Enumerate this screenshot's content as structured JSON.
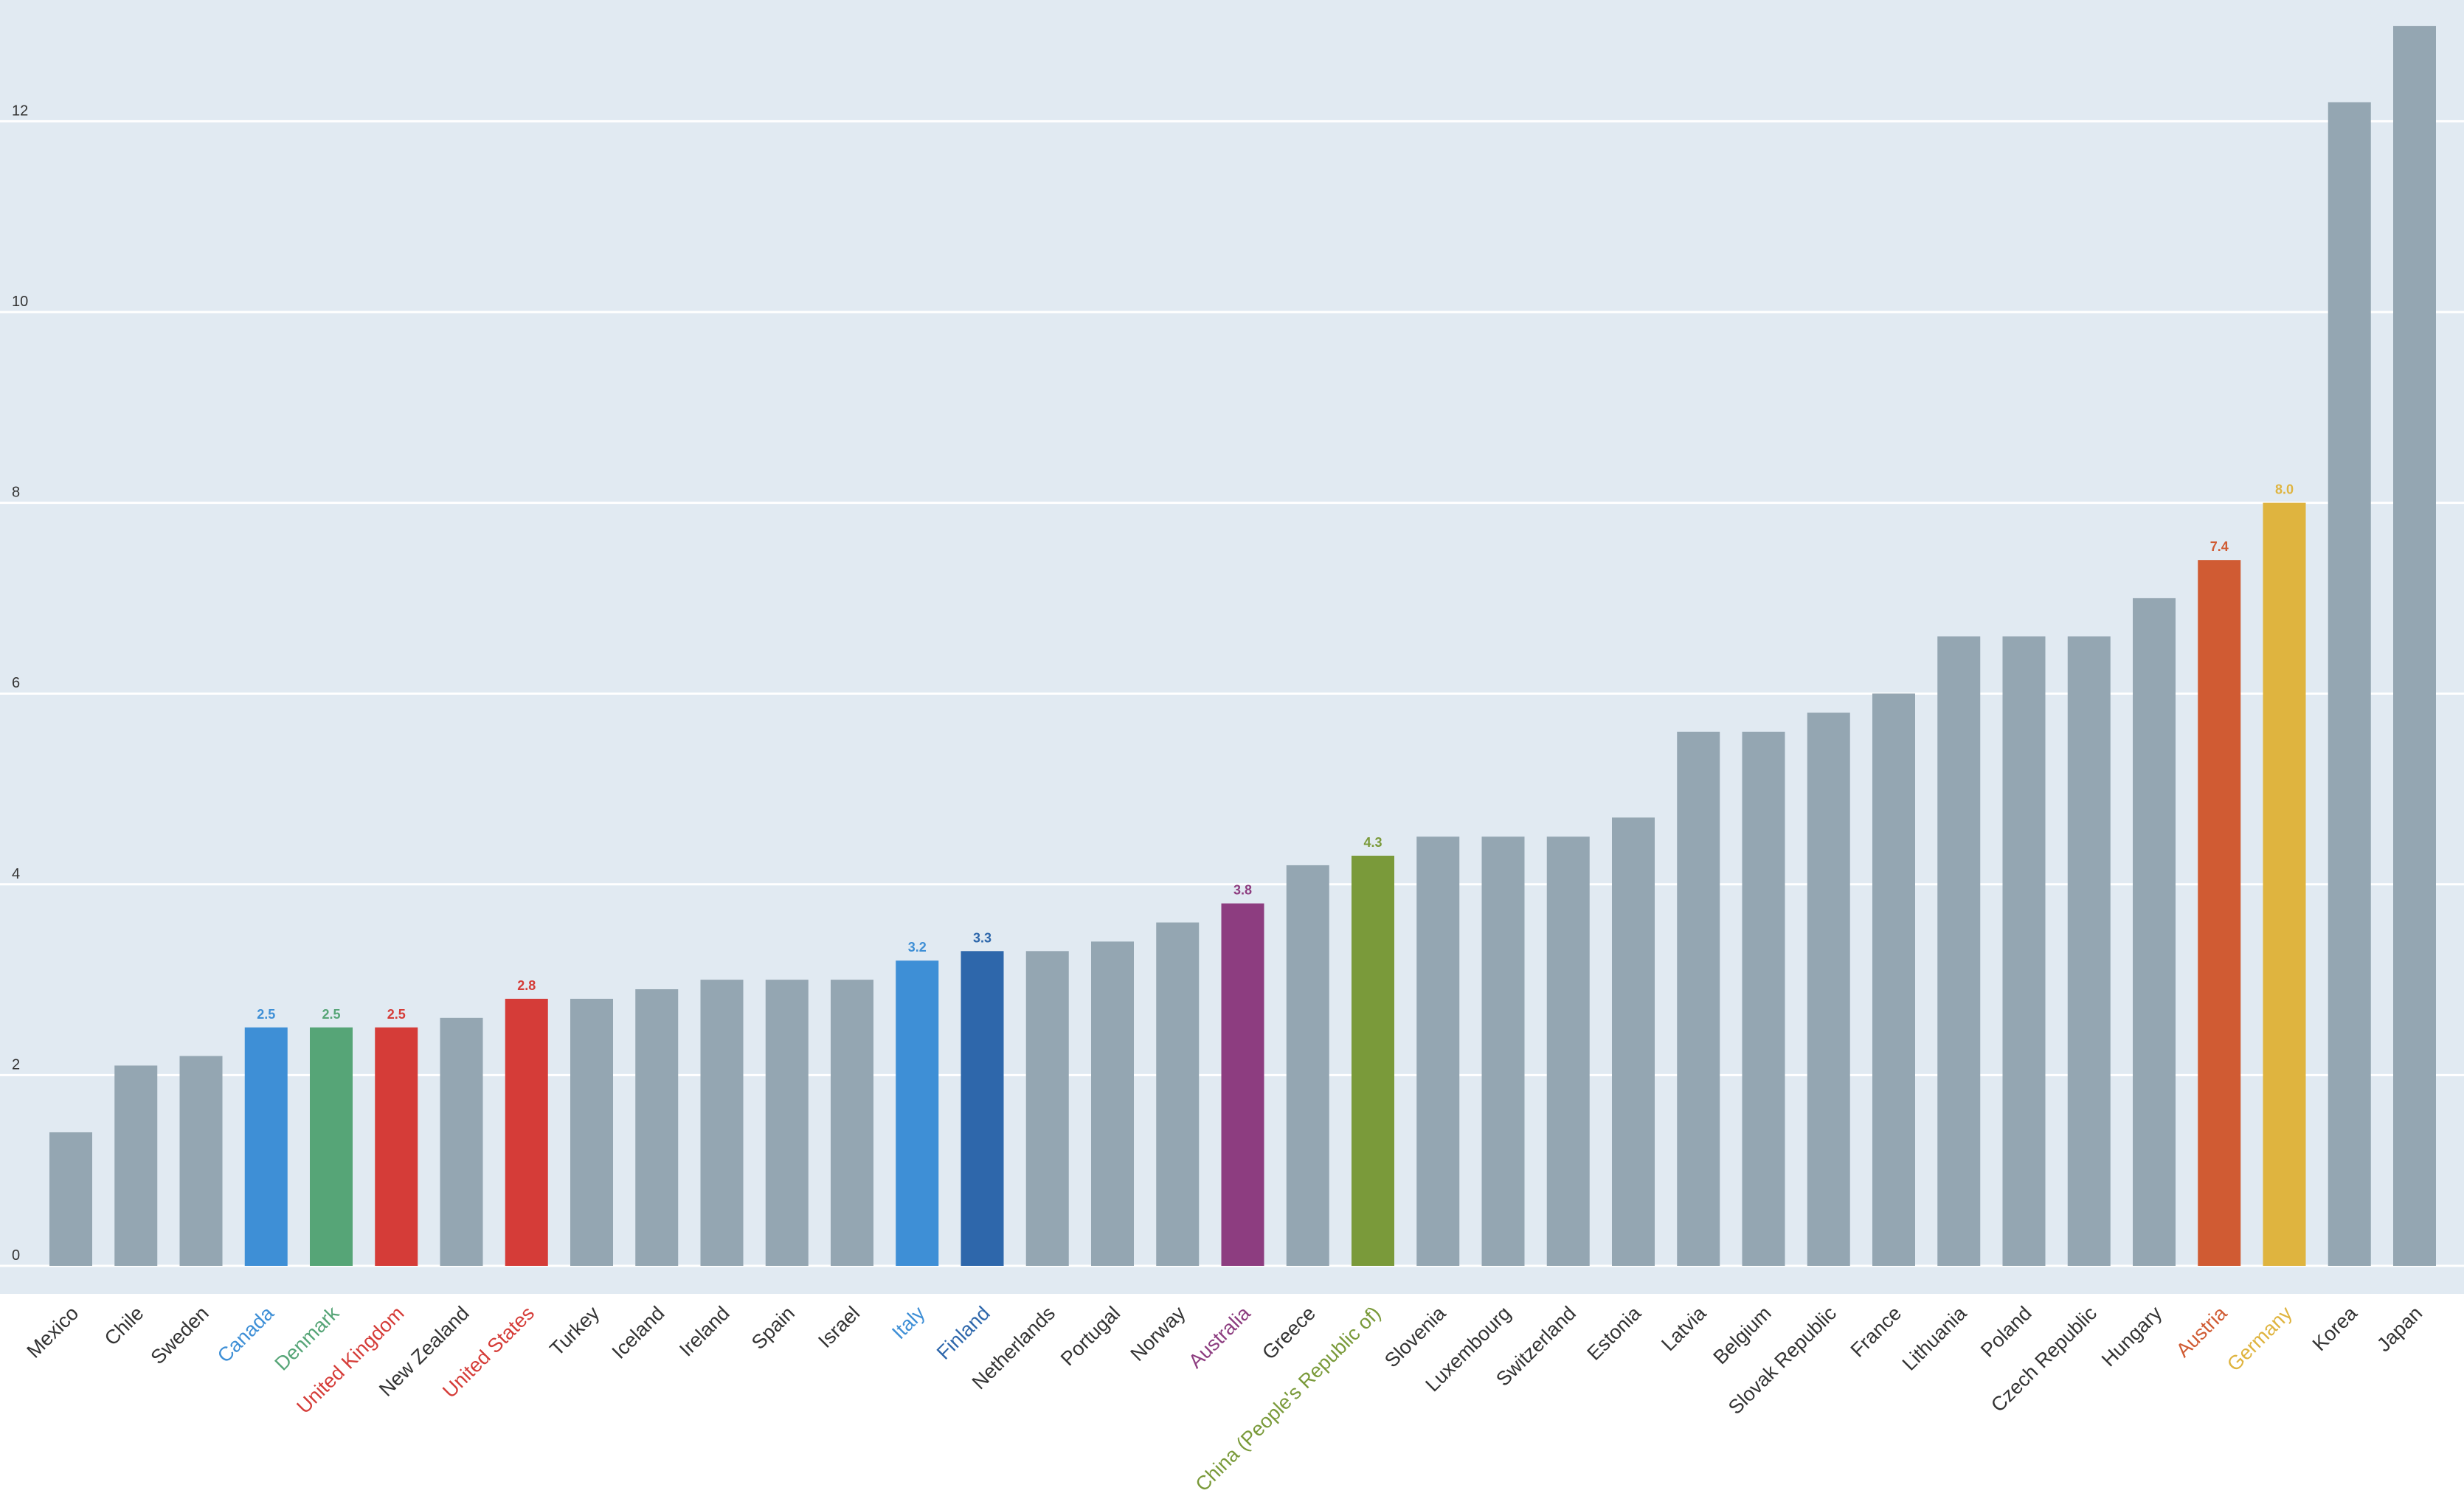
{
  "colors": {
    "plot_background": "#e1eaf2",
    "gridline": "#ffffff",
    "default_bar": "#94a6b2",
    "default_label": "#333333"
  },
  "chart_data": {
    "type": "bar",
    "title": "",
    "xlabel": "",
    "ylabel": "",
    "ylim": [
      0,
      13
    ],
    "yticks": [
      0,
      2,
      4,
      6,
      8,
      10,
      12
    ],
    "grid": true,
    "legend": "none",
    "categories": [
      "Mexico",
      "Chile",
      "Sweden",
      "Canada",
      "Denmark",
      "United Kingdom",
      "New Zealand",
      "United States",
      "Turkey",
      "Iceland",
      "Ireland",
      "Spain",
      "Israel",
      "Italy",
      "Finland",
      "Netherlands",
      "Portugal",
      "Norway",
      "Australia",
      "Greece",
      "China (People's Republic of)",
      "Slovenia",
      "Luxembourg",
      "Switzerland",
      "Estonia",
      "Latvia",
      "Belgium",
      "Slovak Republic",
      "France",
      "Lithuania",
      "Poland",
      "Czech Republic",
      "Hungary",
      "Austria",
      "Germany",
      "Korea",
      "Japan"
    ],
    "values": [
      1.4,
      2.1,
      2.2,
      2.5,
      2.5,
      2.5,
      2.6,
      2.8,
      2.8,
      2.9,
      3.0,
      3.0,
      3.0,
      3.2,
      3.3,
      3.3,
      3.4,
      3.6,
      3.8,
      4.2,
      4.3,
      4.5,
      4.5,
      4.5,
      4.7,
      5.6,
      5.6,
      5.8,
      6.0,
      6.6,
      6.6,
      6.6,
      7.0,
      7.4,
      8.0,
      12.2,
      13.0
    ],
    "data_labels": [
      "",
      "",
      "",
      "2.5",
      "2.5",
      "2.5",
      "",
      "2.8",
      "",
      "",
      "",
      "",
      "",
      "3.2",
      "3.3",
      "",
      "",
      "",
      "3.8",
      "",
      "4.3",
      "",
      "",
      "",
      "",
      "",
      "",
      "",
      "",
      "",
      "",
      "",
      "",
      "7.4",
      "8.0",
      "",
      ""
    ],
    "highlight_colors": {
      "Canada": "#3e8fd6",
      "Denmark": "#56a577",
      "United Kingdom": "#d53c38",
      "United States": "#d53c38",
      "Italy": "#3e8fd6",
      "Finland": "#2e67ab",
      "Australia": "#8d3d80",
      "China (People's Republic of)": "#7a9a3a",
      "Austria": "#d05b33",
      "Germany": "#dfb43f"
    }
  }
}
